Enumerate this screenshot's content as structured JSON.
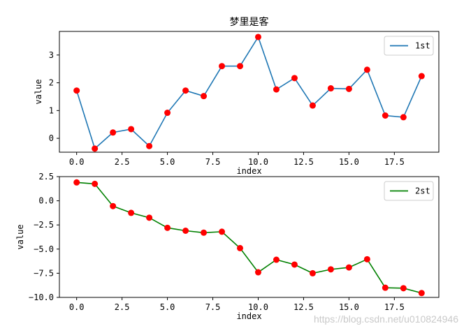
{
  "chart_data": [
    {
      "type": "line",
      "title": "梦里是客",
      "xlabel": "index",
      "ylabel": "value",
      "xlim": [
        -0.95,
        19.95
      ],
      "ylim": [
        -0.5,
        3.85
      ],
      "xticks": [
        0,
        2.5,
        5,
        7.5,
        10,
        12.5,
        15,
        17.5
      ],
      "xtick_labels": [
        "0.0",
        "2.5",
        "5.0",
        "7.5",
        "10.0",
        "12.5",
        "15.0",
        "17.5"
      ],
      "yticks": [
        0,
        1,
        2,
        3
      ],
      "ytick_labels": [
        "0",
        "1",
        "2",
        "3"
      ],
      "legend": "top-right",
      "series": [
        {
          "name": "1st",
          "color": "#1f77b4",
          "marker_color": "#ff0000",
          "x": [
            0,
            1,
            2,
            3,
            4,
            5,
            6,
            7,
            8,
            9,
            10,
            11,
            12,
            13,
            14,
            15,
            16,
            17,
            18,
            19
          ],
          "y": [
            1.72,
            -0.37,
            0.21,
            0.33,
            -0.28,
            0.92,
            1.72,
            1.52,
            2.6,
            2.6,
            3.65,
            1.76,
            2.17,
            1.18,
            1.8,
            1.78,
            2.47,
            0.82,
            0.76,
            2.24
          ]
        }
      ]
    },
    {
      "type": "line",
      "title": "",
      "xlabel": "index",
      "ylabel": "value",
      "xlim": [
        -0.95,
        19.95
      ],
      "ylim": [
        -10.0,
        2.5
      ],
      "xticks": [
        0,
        2.5,
        5,
        7.5,
        10,
        12.5,
        15,
        17.5
      ],
      "xtick_labels": [
        "0.0",
        "2.5",
        "5.0",
        "7.5",
        "10.0",
        "12.5",
        "15.0",
        "17.5"
      ],
      "yticks": [
        2.5,
        0,
        -2.5,
        -5,
        -7.5,
        -10
      ],
      "ytick_labels": [
        "2.5",
        "0.0",
        "−2.5",
        "−5.0",
        "−7.5",
        "−10.0"
      ],
      "legend": "top-right",
      "series": [
        {
          "name": "2st",
          "color": "#008000",
          "marker_color": "#ff0000",
          "x": [
            0,
            1,
            2,
            3,
            4,
            5,
            6,
            7,
            8,
            9,
            10,
            11,
            12,
            13,
            14,
            15,
            16,
            17,
            18,
            19
          ],
          "y": [
            1.9,
            1.75,
            -0.55,
            -1.25,
            -1.75,
            -2.8,
            -3.1,
            -3.3,
            -3.2,
            -4.9,
            -7.4,
            -6.1,
            -6.6,
            -7.5,
            -7.1,
            -6.9,
            -6.05,
            -9.0,
            -9.05,
            -9.55
          ]
        }
      ]
    }
  ],
  "watermark": "https://blog.csdn.net/u010824946"
}
